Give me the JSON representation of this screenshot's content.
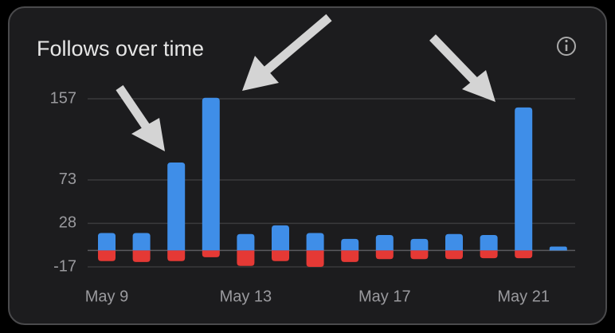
{
  "chart_data": {
    "type": "bar",
    "title": "Follows over time",
    "categories": [
      "May 9",
      null,
      null,
      null,
      "May 13",
      null,
      null,
      null,
      "May 17",
      null,
      null,
      null,
      "May 21",
      null
    ],
    "series": [
      {
        "color": "#3f8ee8",
        "values": [
          18,
          18,
          91,
          158,
          17,
          26,
          18,
          12,
          16,
          12,
          17,
          16,
          148,
          4
        ]
      },
      {
        "color": "#e53935",
        "values": [
          -11,
          -12,
          -11,
          -7,
          -16,
          -11,
          -17,
          -12,
          -9,
          -9,
          -9,
          -8,
          -8,
          0
        ]
      }
    ],
    "ylim": [
      -17,
      157
    ],
    "yticks": [
      -17,
      28,
      73,
      157
    ],
    "grid": true
  }
}
